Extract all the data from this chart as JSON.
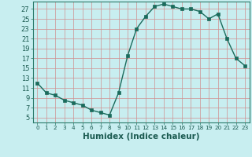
{
  "x": [
    0,
    1,
    2,
    3,
    4,
    5,
    6,
    7,
    8,
    9,
    10,
    11,
    12,
    13,
    14,
    15,
    16,
    17,
    18,
    19,
    20,
    21,
    22,
    23
  ],
  "y": [
    12,
    10,
    9.5,
    8.5,
    8,
    7.5,
    6.5,
    6,
    5.5,
    10,
    17.5,
    23,
    25.5,
    27.5,
    28,
    27.5,
    27,
    27,
    26.5,
    25,
    26,
    21,
    17,
    15.5
  ],
  "line_color": "#1a6b5c",
  "marker": "s",
  "marker_size": 2.2,
  "bg_color": "#c8eef0",
  "grid_color": "#d09090",
  "xlabel": "Humidex (Indice chaleur)",
  "xlabel_fontsize": 7.5,
  "ylabel_ticks": [
    5,
    7,
    9,
    11,
    13,
    15,
    17,
    19,
    21,
    23,
    25,
    27
  ],
  "ylim": [
    4.0,
    28.5
  ],
  "xlim": [
    -0.5,
    23.5
  ]
}
